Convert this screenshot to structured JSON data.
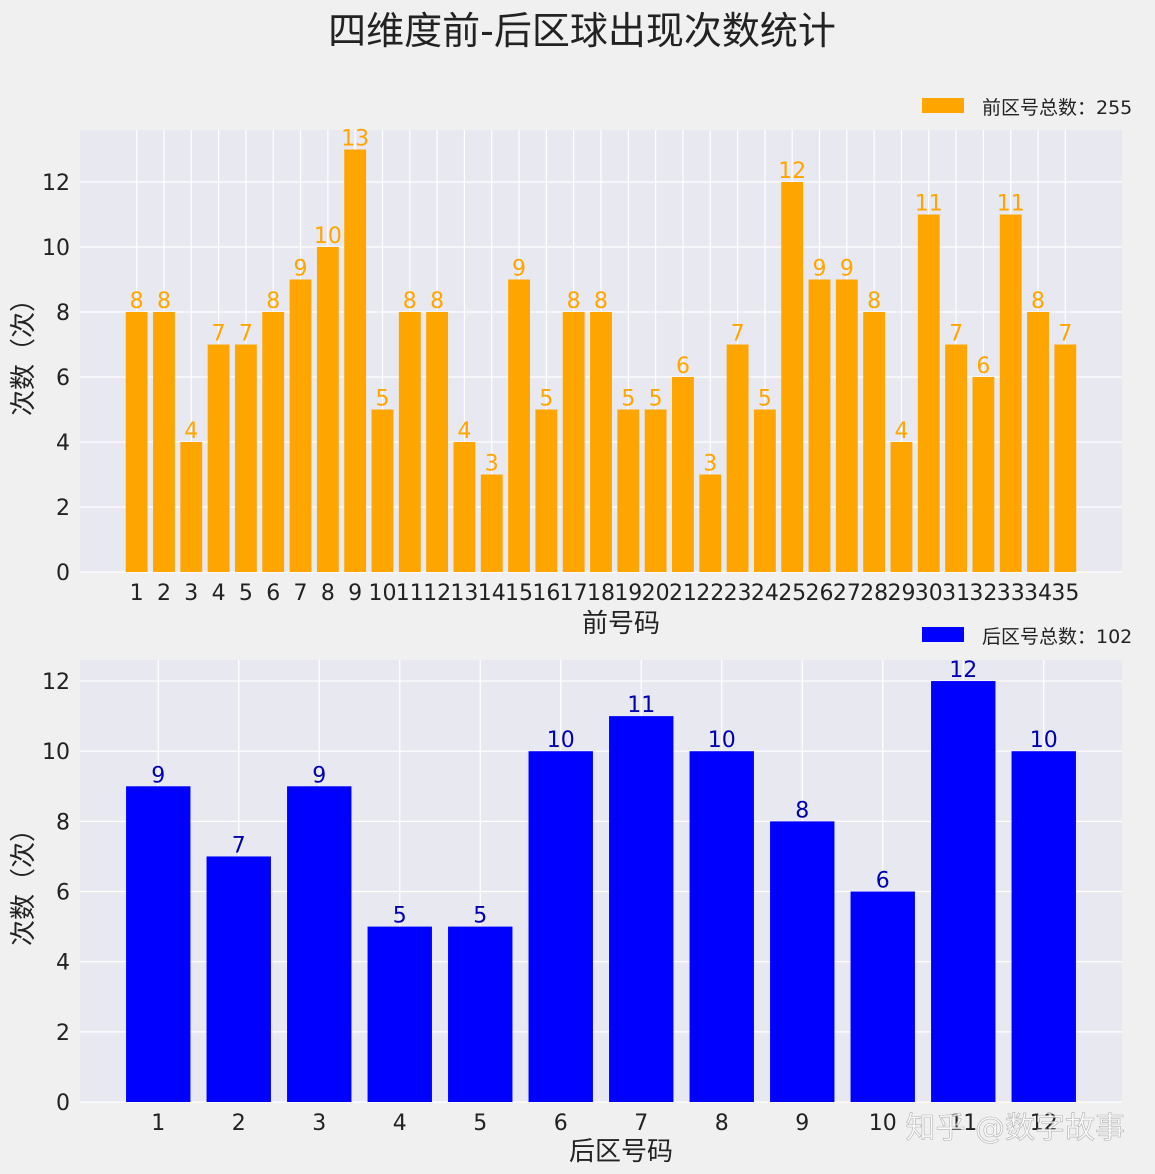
{
  "title": "四维度前-后区球出现次数统计",
  "watermark": "知乎 @数字故事",
  "colors": {
    "figure_bg": "#f0f0f0",
    "plot_bg": "#e8e8f0",
    "grid": "#ffffff",
    "front_bar": "#ffa500",
    "front_label": "#ffa500",
    "back_bar": "#0000ff",
    "back_label": "#0000b0",
    "text": "#222222"
  },
  "chart_data": [
    {
      "type": "bar",
      "id": "front",
      "xlabel": "前号码",
      "ylabel": "次数（次）",
      "ylim": [
        0,
        13.6
      ],
      "yticks": [
        0,
        2,
        4,
        6,
        8,
        10,
        12
      ],
      "grid": true,
      "legend_position": "top-right",
      "categories": [
        "1",
        "2",
        "3",
        "4",
        "5",
        "6",
        "7",
        "8",
        "9",
        "10",
        "11",
        "12",
        "13",
        "14",
        "15",
        "16",
        "17",
        "18",
        "19",
        "20",
        "21",
        "22",
        "23",
        "24",
        "25",
        "26",
        "27",
        "28",
        "29",
        "30",
        "31",
        "32",
        "33",
        "34",
        "35"
      ],
      "series": [
        {
          "name": "前区号总数：255",
          "values": [
            8,
            8,
            4,
            7,
            7,
            8,
            9,
            10,
            13,
            5,
            8,
            8,
            4,
            3,
            9,
            5,
            8,
            8,
            5,
            5,
            6,
            3,
            7,
            5,
            12,
            9,
            9,
            8,
            4,
            11,
            7,
            6,
            11,
            8,
            7
          ]
        }
      ]
    },
    {
      "type": "bar",
      "id": "back",
      "xlabel": "后区号码",
      "ylabel": "次数（次）",
      "ylim": [
        0,
        12.6
      ],
      "yticks": [
        0,
        2,
        4,
        6,
        8,
        10,
        12
      ],
      "grid": true,
      "legend_position": "top-right",
      "categories": [
        "1",
        "2",
        "3",
        "4",
        "5",
        "6",
        "7",
        "8",
        "9",
        "10",
        "11",
        "12"
      ],
      "series": [
        {
          "name": "后区号总数：102",
          "values": [
            9,
            7,
            9,
            5,
            5,
            10,
            11,
            10,
            8,
            6,
            12,
            10
          ]
        }
      ]
    }
  ]
}
